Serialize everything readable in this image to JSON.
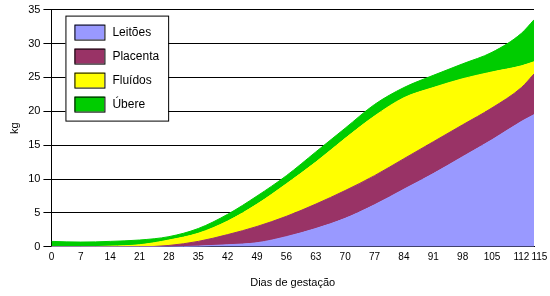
{
  "chart_data": {
    "type": "area",
    "stacked": true,
    "grid": true,
    "legend": "top-left",
    "x_label": "Dias de gestação",
    "y_label": "kg",
    "x": [
      0,
      7,
      14,
      21,
      28,
      35,
      42,
      49,
      56,
      63,
      70,
      77,
      84,
      91,
      98,
      105,
      112,
      115
    ],
    "xlim": [
      0,
      115
    ],
    "xticks": [
      0,
      7,
      14,
      21,
      28,
      35,
      42,
      49,
      56,
      63,
      70,
      77,
      84,
      91,
      98,
      105,
      112,
      115
    ],
    "ylim": [
      0,
      35
    ],
    "yticks": [
      0,
      5,
      10,
      15,
      20,
      25,
      30,
      35
    ],
    "series": [
      {
        "name": "Leitões",
        "color": "#9999ff",
        "values": [
          0,
          0,
          0,
          0,
          0,
          0.1,
          0.3,
          0.6,
          1.5,
          2.7,
          4.2,
          6.2,
          8.5,
          10.8,
          13.3,
          15.8,
          18.5,
          19.5
        ]
      },
      {
        "name": "Placenta",
        "color": "#993366",
        "values": [
          0,
          0,
          0,
          0,
          0.2,
          0.7,
          1.5,
          2.4,
          3.0,
          3.6,
          4.1,
          4.3,
          4.5,
          4.7,
          4.7,
          4.7,
          5.0,
          6.0
        ]
      },
      {
        "name": "Fluídos",
        "color": "#ffff00",
        "values": [
          0,
          0,
          0.1,
          0.3,
          0.8,
          1.2,
          2.0,
          3.3,
          4.8,
          6.2,
          7.7,
          8.8,
          9.0,
          8.0,
          6.8,
          5.3,
          3.2,
          1.8
        ]
      },
      {
        "name": "Úbere",
        "color": "#00cc00",
        "values": [
          0.8,
          0.7,
          0.7,
          0.7,
          0.5,
          0.7,
          1.0,
          1.2,
          1.2,
          1.5,
          1.5,
          1.7,
          1.5,
          1.8,
          2.2,
          2.9,
          4.8,
          6.2
        ]
      }
    ]
  }
}
